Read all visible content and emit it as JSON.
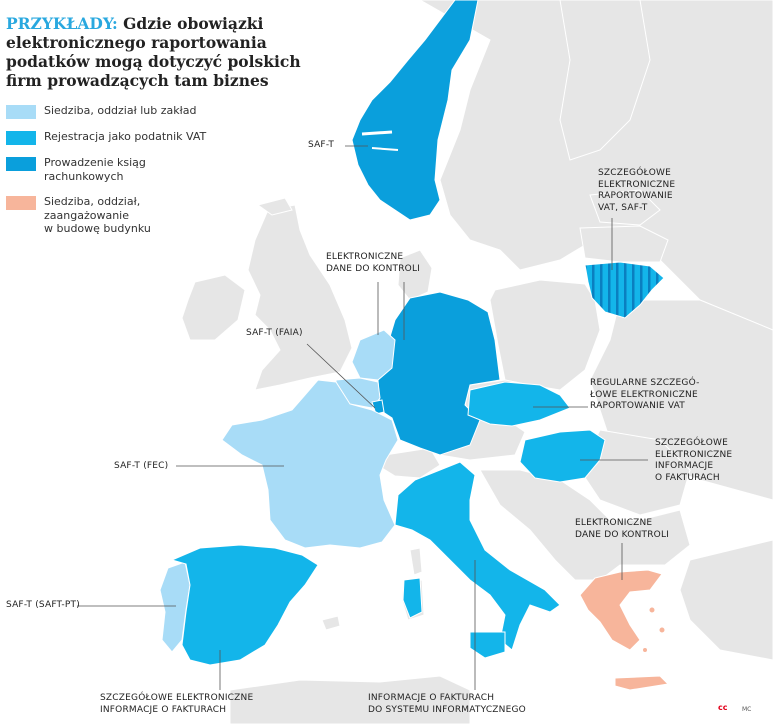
{
  "title": {
    "prefix": "PRZYKŁADY:",
    "text": "Gdzie obowiązki elektronicznego raportowania podatków mogą dotyczyć polskich firm prowadzących tam biznes"
  },
  "colors": {
    "land": "#e6e6e6",
    "border": "#ffffff",
    "sea": "#ffffff",
    "light_blue": "#a8dcf7",
    "mid_blue": "#13b5ea",
    "dark_blue": "#0a9fdc",
    "salmon": "#f7b59b",
    "leader": "#555555"
  },
  "legend": [
    {
      "label": "Siedziba, oddział lub zakład",
      "color_key": "light_blue"
    },
    {
      "label": "Rejestracja jako podatnik VAT",
      "color_key": "mid_blue"
    },
    {
      "label": "Prowadzenie ksiąg\nrachunkowych",
      "color_key": "dark_blue"
    },
    {
      "label": "Siedziba, oddział,\nzaangażowanie\nw budowę budynku",
      "color_key": "salmon"
    }
  ],
  "countries": [
    {
      "name": "Norway",
      "category": "dark_blue"
    },
    {
      "name": "Lithuania",
      "category": "mid_blue + dark_blue stripes"
    },
    {
      "name": "Germany",
      "category": "dark_blue"
    },
    {
      "name": "Netherlands",
      "category": "light_blue"
    },
    {
      "name": "Belgium",
      "category": "light_blue"
    },
    {
      "name": "Luxembourg",
      "category": "dark_blue"
    },
    {
      "name": "France",
      "category": "light_blue"
    },
    {
      "name": "Portugal",
      "category": "light_blue"
    },
    {
      "name": "Spain",
      "category": "mid_blue"
    },
    {
      "name": "Italy",
      "category": "mid_blue"
    },
    {
      "name": "Slovakia",
      "category": "mid_blue"
    },
    {
      "name": "Hungary",
      "category": "mid_blue"
    },
    {
      "name": "Greece",
      "category": "salmon"
    }
  ],
  "labels": {
    "norway": "SAF-T",
    "lithuania": "SZCZEGÓŁOWE\nELEKTRONICZNE\nRAPORTOWANIE\nVAT, SAF-T",
    "germany": "ELEKTRONICZNE\nDANE DO KONTROLI",
    "luxembourg": "SAF-T (FAIA)",
    "slovakia": "REGULARNE SZCZEGÓ-\nŁOWE ELEKTRONICZNE\nRAPORTOWANIE VAT",
    "hungary": "SZCZEGÓŁOWE\nELEKTRONICZNE\nINFORMACJE\nO FAKTURACH",
    "france": "SAF-T (FEC)",
    "greece": "ELEKTRONICZNE\nDANE DO KONTROLI",
    "portugal": "SAF-T (SAFT-PT)",
    "spain": "SZCZEGÓŁOWE ELEKTRONICZNE\nINFORMACJE O FAKTURACH",
    "italy": "INFORMACJE O FAKTURACH\nDO SYSTEMU INFORMATYCZNEGO"
  },
  "credit": "MC"
}
